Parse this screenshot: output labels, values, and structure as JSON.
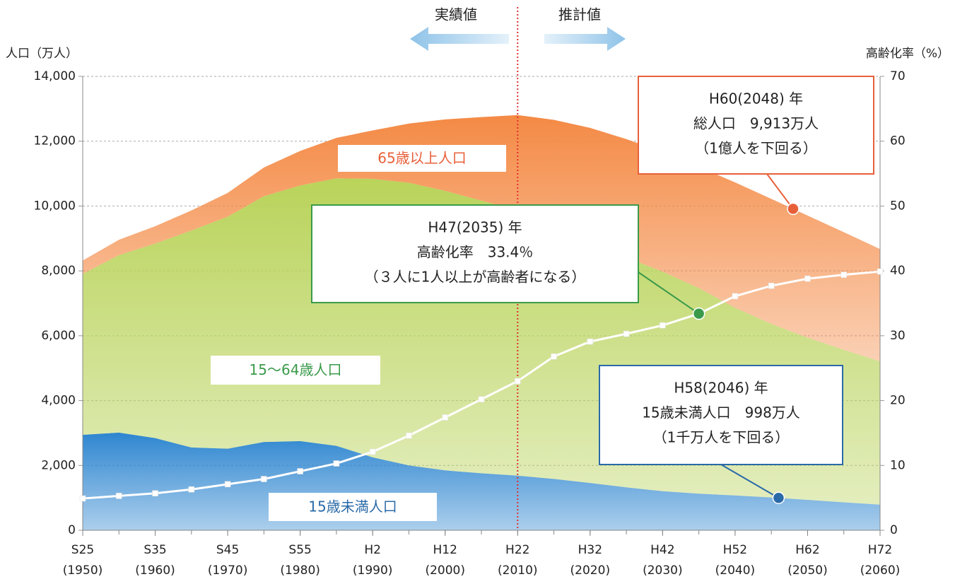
{
  "chart_data": {
    "type": "stacked_area",
    "y_label": "人口（万人）",
    "y2_label": "高齢化率（%）",
    "x": [
      1950,
      1955,
      1960,
      1965,
      1970,
      1975,
      1980,
      1985,
      1990,
      1995,
      2000,
      2005,
      2010,
      2015,
      2020,
      2025,
      2030,
      2035,
      2040,
      2045,
      2050,
      2055,
      2060
    ],
    "xlim": [
      1950,
      2060
    ],
    "xticks": [
      {
        "value": 1950,
        "label": "S25\n(1950)"
      },
      {
        "value": 1960,
        "label": "S35\n(1960)"
      },
      {
        "value": 1970,
        "label": "S45\n(1970)"
      },
      {
        "value": 1980,
        "label": "S55\n(1980)"
      },
      {
        "value": 1990,
        "label": "H2\n(1990)"
      },
      {
        "value": 2000,
        "label": "H12\n(2000)"
      },
      {
        "value": 2010,
        "label": "H22\n(2010)"
      },
      {
        "value": 2020,
        "label": "H32\n(2020)"
      },
      {
        "value": 2030,
        "label": "H42\n(2030)"
      },
      {
        "value": 2040,
        "label": "H52\n(2040)"
      },
      {
        "value": 2050,
        "label": "H62\n(2050)"
      },
      {
        "value": 2060,
        "label": "H72\n(2060)"
      }
    ],
    "ylim": [
      0,
      14000
    ],
    "yticks": [
      0,
      {
        "value": 2000,
        "label": "2,000"
      },
      {
        "value": 4000,
        "label": "4,000"
      },
      {
        "value": 6000,
        "label": "6,000"
      },
      {
        "value": 8000,
        "label": "8,000"
      },
      {
        "value": 10000,
        "label": "10,000"
      },
      {
        "value": 12000,
        "label": "12,000"
      },
      {
        "value": 14000,
        "label": "14,000"
      }
    ],
    "y2lim": [
      0,
      70
    ],
    "y2ticks": [
      0,
      10,
      20,
      30,
      40,
      50,
      60,
      70
    ],
    "grid": true,
    "series": [
      {
        "name": "15歳未満人口",
        "color": "#2e86d0",
        "label_color": "#2a6aa8",
        "values": [
          2943,
          3012,
          2843,
          2553,
          2515,
          2722,
          2751,
          2604,
          2249,
          2001,
          1847,
          1759,
          1684,
          1583,
          1457,
          1324,
          1204,
          1129,
          1073,
          1012,
          939,
          861,
          791
        ]
      },
      {
        "name": "15〜64歳人口",
        "color": "#b9d35a",
        "label_color": "#3a9a4a",
        "values": [
          4966,
          5473,
          6000,
          6693,
          7157,
          7581,
          7883,
          8251,
          8590,
          8716,
          8622,
          8409,
          8173,
          7682,
          7341,
          7085,
          6773,
          6343,
          5787,
          5353,
          5001,
          4706,
          4418
        ]
      },
      {
        "name": "65歳以上人口",
        "color": "#f48a45",
        "label_color": "#e8603a",
        "values": [
          411,
          475,
          535,
          618,
          733,
          887,
          1065,
          1247,
          1493,
          1828,
          2204,
          2576,
          2948,
          3395,
          3612,
          3657,
          3685,
          3741,
          3868,
          3856,
          3768,
          3626,
          3464
        ]
      },
      {
        "name": "高齢化率",
        "type": "line",
        "axis": "y2",
        "color": "#ffffff",
        "show_name": false,
        "values": [
          4.9,
          5.3,
          5.7,
          6.3,
          7.1,
          7.9,
          9.1,
          10.3,
          12.1,
          14.6,
          17.4,
          20.2,
          23.0,
          26.8,
          29.1,
          30.3,
          31.6,
          33.4,
          36.1,
          37.7,
          38.8,
          39.4,
          39.9
        ]
      }
    ],
    "divider": {
      "x": 2010,
      "left_label": "実績値",
      "right_label": "推計値",
      "color": "#e03030"
    },
    "annotations": [
      {
        "lines": [
          "H60(2048) 年",
          "総人口　9,913万人",
          "（1億人を下回る）"
        ],
        "x": 2048,
        "y": 9913,
        "axis": "y",
        "color": "#e8603a"
      },
      {
        "lines": [
          "H47(2035) 年",
          "高齢化率　33.4％",
          "（３人に1人以上が高齢者になる）"
        ],
        "x": 2035,
        "y": 33.4,
        "axis": "y2",
        "color": "#3a9a4a"
      },
      {
        "lines": [
          "H58(2046) 年",
          "15歳未満人口　998万人",
          "（1千万人を下回る）"
        ],
        "x": 2046,
        "y": 998,
        "axis": "y",
        "color": "#2a6aa8"
      }
    ]
  }
}
